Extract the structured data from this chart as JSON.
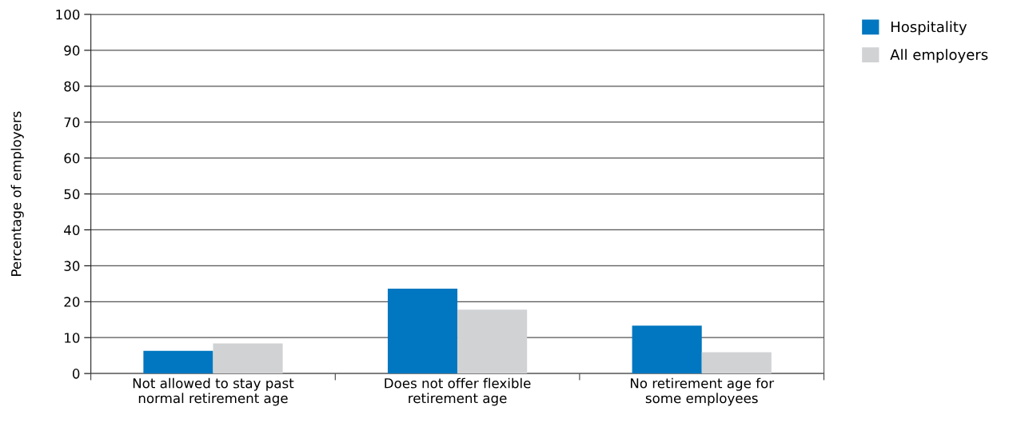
{
  "chart_data": {
    "type": "bar",
    "ylabel": "Percentage of employers",
    "categories": [
      "Not allowed to stay past\nnormal retirement age",
      "Does not offer flexible\nretirement age",
      "No retirement age for\nsome employees"
    ],
    "series": [
      {
        "name": "Hospitality",
        "color": "#0077c0",
        "values": [
          6.3,
          23.6,
          13.3
        ]
      },
      {
        "name": "All employers",
        "color": "#d1d2d4",
        "values": [
          8.4,
          17.8,
          5.9
        ]
      }
    ],
    "ylim": [
      0,
      100
    ],
    "yticks": [
      0,
      10,
      20,
      30,
      40,
      50,
      60,
      70,
      80,
      90,
      100
    ],
    "grid": "y",
    "legend": "top right"
  }
}
